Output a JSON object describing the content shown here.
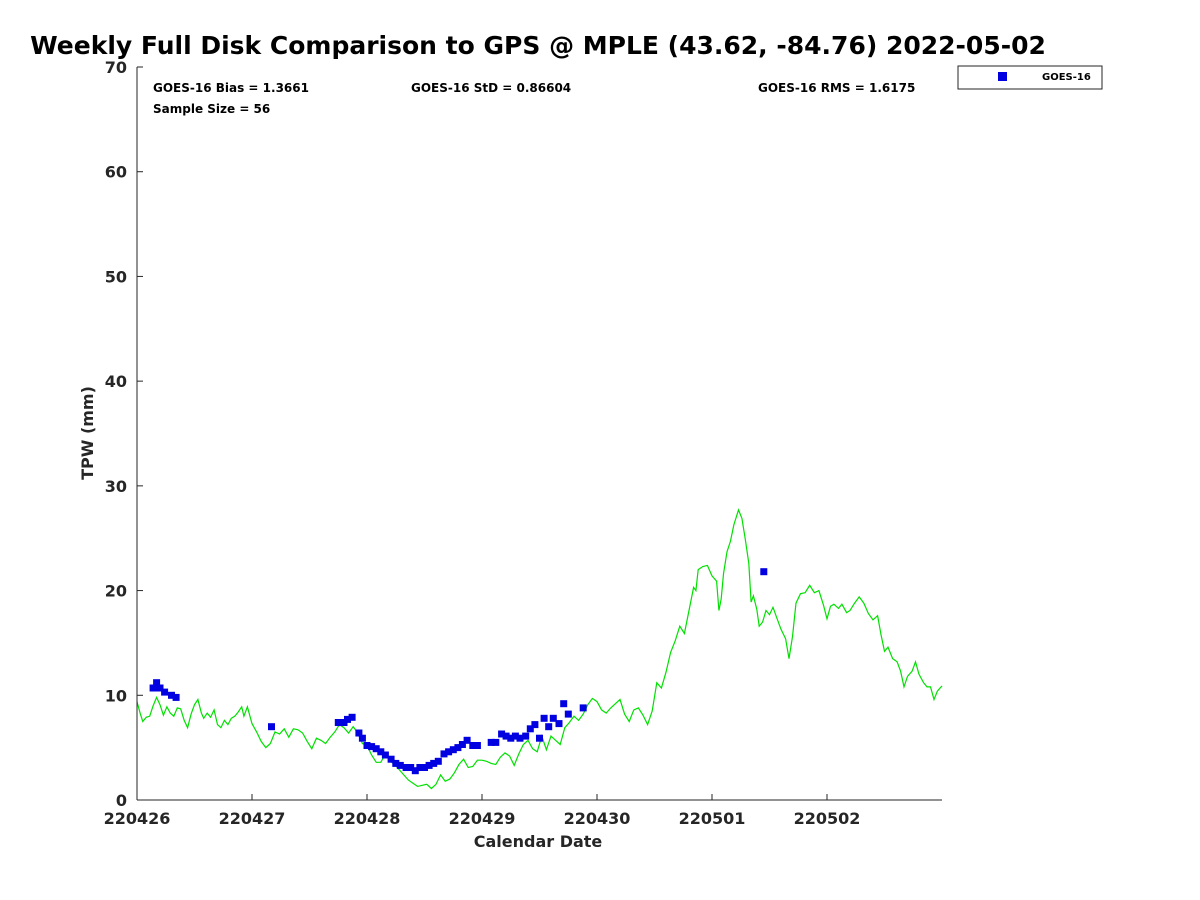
{
  "chart_data": {
    "type": "scatter",
    "title": "Weekly Full Disk Comparison to GPS @ MPLE (43.62, -84.76) 2022-05-02",
    "xlabel": "Calendar Date",
    "ylabel": "TPW (mm)",
    "xlim": [
      0,
      7
    ],
    "ylim": [
      0,
      70
    ],
    "x_ticks": [
      {
        "value": 0,
        "label": "220426"
      },
      {
        "value": 1,
        "label": "220427"
      },
      {
        "value": 2,
        "label": "220428"
      },
      {
        "value": 3,
        "label": "220429"
      },
      {
        "value": 4,
        "label": "220430"
      },
      {
        "value": 5,
        "label": "220501"
      },
      {
        "value": 6,
        "label": "220502"
      }
    ],
    "y_ticks": [
      0,
      10,
      20,
      30,
      40,
      50,
      60,
      70
    ],
    "stats": {
      "bias": "GOES-16 Bias = 1.3661",
      "std": "GOES-16 StD = 0.86604",
      "rms": "GOES-16 RMS = 1.6175",
      "sample": "Sample Size = 56"
    },
    "legend": {
      "position": "top-right, outside plot",
      "entries": [
        {
          "name": "GOES-16",
          "color": "#0000e0",
          "marker": "square"
        }
      ]
    },
    "series": [
      {
        "name": "GOES-16",
        "color": "#0000e0",
        "marker": "square",
        "points": [
          [
            0.14,
            10.7
          ],
          [
            0.17,
            11.2
          ],
          [
            0.2,
            10.7
          ],
          [
            0.24,
            10.3
          ],
          [
            0.3,
            10.0
          ],
          [
            0.34,
            9.8
          ],
          [
            1.17,
            7.0
          ],
          [
            1.75,
            7.4
          ],
          [
            1.8,
            7.4
          ],
          [
            1.83,
            7.7
          ],
          [
            1.87,
            7.9
          ],
          [
            1.93,
            6.4
          ],
          [
            1.96,
            5.9
          ],
          [
            2.0,
            5.2
          ],
          [
            2.04,
            5.1
          ],
          [
            2.08,
            4.9
          ],
          [
            2.12,
            4.6
          ],
          [
            2.16,
            4.3
          ],
          [
            2.21,
            3.9
          ],
          [
            2.25,
            3.5
          ],
          [
            2.29,
            3.3
          ],
          [
            2.34,
            3.1
          ],
          [
            2.38,
            3.1
          ],
          [
            2.42,
            2.8
          ],
          [
            2.46,
            3.1
          ],
          [
            2.5,
            3.1
          ],
          [
            2.54,
            3.3
          ],
          [
            2.58,
            3.5
          ],
          [
            2.62,
            3.7
          ],
          [
            2.67,
            4.4
          ],
          [
            2.71,
            4.6
          ],
          [
            2.75,
            4.8
          ],
          [
            2.79,
            5.0
          ],
          [
            2.83,
            5.3
          ],
          [
            2.87,
            5.7
          ],
          [
            2.92,
            5.2
          ],
          [
            2.96,
            5.2
          ],
          [
            3.08,
            5.5
          ],
          [
            3.12,
            5.5
          ],
          [
            3.17,
            6.3
          ],
          [
            3.21,
            6.1
          ],
          [
            3.25,
            5.9
          ],
          [
            3.29,
            6.1
          ],
          [
            3.33,
            5.9
          ],
          [
            3.38,
            6.1
          ],
          [
            3.42,
            6.8
          ],
          [
            3.46,
            7.2
          ],
          [
            3.5,
            5.9
          ],
          [
            3.54,
            7.8
          ],
          [
            3.58,
            7.0
          ],
          [
            3.62,
            7.8
          ],
          [
            3.67,
            7.3
          ],
          [
            3.71,
            9.2
          ],
          [
            3.75,
            8.2
          ],
          [
            3.88,
            8.8
          ],
          [
            5.45,
            21.8
          ]
        ]
      },
      {
        "name": "GPS",
        "color": "#00e000",
        "marker": "line",
        "points": [
          [
            0.0,
            9.4
          ],
          [
            0.03,
            8.2
          ],
          [
            0.05,
            7.5
          ],
          [
            0.08,
            7.9
          ],
          [
            0.11,
            8.0
          ],
          [
            0.14,
            9.0
          ],
          [
            0.17,
            9.8
          ],
          [
            0.2,
            9.1
          ],
          [
            0.23,
            8.1
          ],
          [
            0.26,
            8.9
          ],
          [
            0.29,
            8.3
          ],
          [
            0.32,
            8.0
          ],
          [
            0.35,
            8.8
          ],
          [
            0.38,
            8.7
          ],
          [
            0.41,
            7.6
          ],
          [
            0.44,
            6.9
          ],
          [
            0.47,
            8.2
          ],
          [
            0.5,
            9.1
          ],
          [
            0.53,
            9.6
          ],
          [
            0.56,
            8.3
          ],
          [
            0.58,
            7.8
          ],
          [
            0.61,
            8.3
          ],
          [
            0.64,
            7.9
          ],
          [
            0.67,
            8.6
          ],
          [
            0.7,
            7.2
          ],
          [
            0.73,
            6.9
          ],
          [
            0.76,
            7.6
          ],
          [
            0.79,
            7.2
          ],
          [
            0.82,
            7.8
          ],
          [
            0.85,
            8.0
          ],
          [
            0.88,
            8.4
          ],
          [
            0.91,
            8.9
          ],
          [
            0.93,
            8.0
          ],
          [
            0.96,
            8.9
          ],
          [
            1.0,
            7.3
          ],
          [
            1.04,
            6.5
          ],
          [
            1.08,
            5.6
          ],
          [
            1.12,
            5.0
          ],
          [
            1.16,
            5.4
          ],
          [
            1.2,
            6.5
          ],
          [
            1.24,
            6.3
          ],
          [
            1.28,
            6.8
          ],
          [
            1.32,
            6.0
          ],
          [
            1.36,
            6.8
          ],
          [
            1.4,
            6.7
          ],
          [
            1.44,
            6.4
          ],
          [
            1.48,
            5.6
          ],
          [
            1.52,
            4.9
          ],
          [
            1.56,
            5.9
          ],
          [
            1.6,
            5.7
          ],
          [
            1.64,
            5.4
          ],
          [
            1.68,
            6.0
          ],
          [
            1.72,
            6.5
          ],
          [
            1.76,
            7.2
          ],
          [
            1.8,
            6.9
          ],
          [
            1.84,
            6.4
          ],
          [
            1.88,
            7.0
          ],
          [
            1.92,
            6.4
          ],
          [
            1.96,
            5.4
          ],
          [
            2.0,
            5.2
          ],
          [
            2.04,
            4.3
          ],
          [
            2.08,
            3.6
          ],
          [
            2.12,
            3.6
          ],
          [
            2.16,
            4.4
          ],
          [
            2.2,
            3.7
          ],
          [
            2.24,
            3.4
          ],
          [
            2.28,
            2.9
          ],
          [
            2.32,
            2.4
          ],
          [
            2.36,
            1.9
          ],
          [
            2.4,
            1.6
          ],
          [
            2.44,
            1.3
          ],
          [
            2.48,
            1.4
          ],
          [
            2.52,
            1.5
          ],
          [
            2.56,
            1.1
          ],
          [
            2.6,
            1.5
          ],
          [
            2.64,
            2.4
          ],
          [
            2.68,
            1.8
          ],
          [
            2.72,
            2.0
          ],
          [
            2.76,
            2.6
          ],
          [
            2.8,
            3.4
          ],
          [
            2.84,
            3.9
          ],
          [
            2.88,
            3.1
          ],
          [
            2.92,
            3.2
          ],
          [
            2.96,
            3.8
          ],
          [
            3.0,
            3.8
          ],
          [
            3.04,
            3.7
          ],
          [
            3.08,
            3.5
          ],
          [
            3.12,
            3.4
          ],
          [
            3.16,
            4.1
          ],
          [
            3.2,
            4.5
          ],
          [
            3.24,
            4.2
          ],
          [
            3.28,
            3.3
          ],
          [
            3.32,
            4.4
          ],
          [
            3.36,
            5.3
          ],
          [
            3.4,
            5.7
          ],
          [
            3.44,
            4.9
          ],
          [
            3.48,
            4.6
          ],
          [
            3.52,
            6.1
          ],
          [
            3.56,
            4.8
          ],
          [
            3.6,
            6.1
          ],
          [
            3.64,
            5.7
          ],
          [
            3.68,
            5.3
          ],
          [
            3.72,
            6.9
          ],
          [
            3.76,
            7.4
          ],
          [
            3.8,
            8.0
          ],
          [
            3.84,
            7.6
          ],
          [
            3.88,
            8.2
          ],
          [
            3.92,
            9.1
          ],
          [
            3.96,
            9.7
          ],
          [
            4.0,
            9.4
          ],
          [
            4.04,
            8.6
          ],
          [
            4.08,
            8.3
          ],
          [
            4.12,
            8.8
          ],
          [
            4.16,
            9.2
          ],
          [
            4.2,
            9.6
          ],
          [
            4.24,
            8.2
          ],
          [
            4.28,
            7.5
          ],
          [
            4.32,
            8.6
          ],
          [
            4.36,
            8.8
          ],
          [
            4.4,
            8.1
          ],
          [
            4.44,
            7.2
          ],
          [
            4.48,
            8.5
          ],
          [
            4.52,
            11.2
          ],
          [
            4.56,
            10.7
          ],
          [
            4.6,
            12.2
          ],
          [
            4.64,
            14.1
          ],
          [
            4.68,
            15.2
          ],
          [
            4.72,
            16.6
          ],
          [
            4.76,
            15.9
          ],
          [
            4.8,
            18.1
          ],
          [
            4.84,
            20.3
          ],
          [
            4.86,
            20.0
          ],
          [
            4.88,
            22.0
          ],
          [
            4.92,
            22.3
          ],
          [
            4.96,
            22.4
          ],
          [
            5.0,
            21.4
          ],
          [
            5.04,
            20.9
          ],
          [
            5.06,
            18.1
          ],
          [
            5.08,
            19.2
          ],
          [
            5.1,
            21.6
          ],
          [
            5.13,
            23.7
          ],
          [
            5.16,
            24.7
          ],
          [
            5.19,
            26.3
          ],
          [
            5.23,
            27.7
          ],
          [
            5.26,
            26.9
          ],
          [
            5.29,
            24.9
          ],
          [
            5.32,
            22.6
          ],
          [
            5.34,
            18.9
          ],
          [
            5.36,
            19.5
          ],
          [
            5.39,
            18.2
          ],
          [
            5.41,
            16.6
          ],
          [
            5.44,
            17.0
          ],
          [
            5.47,
            18.1
          ],
          [
            5.5,
            17.7
          ],
          [
            5.53,
            18.4
          ],
          [
            5.56,
            17.5
          ],
          [
            5.6,
            16.3
          ],
          [
            5.64,
            15.4
          ],
          [
            5.67,
            13.5
          ],
          [
            5.7,
            15.6
          ],
          [
            5.73,
            18.8
          ],
          [
            5.77,
            19.7
          ],
          [
            5.81,
            19.8
          ],
          [
            5.85,
            20.5
          ],
          [
            5.89,
            19.8
          ],
          [
            5.93,
            20.0
          ],
          [
            5.97,
            18.6
          ],
          [
            6.0,
            17.3
          ],
          [
            6.03,
            18.5
          ],
          [
            6.06,
            18.7
          ],
          [
            6.1,
            18.3
          ],
          [
            6.13,
            18.7
          ],
          [
            6.17,
            17.9
          ],
          [
            6.2,
            18.1
          ],
          [
            6.24,
            18.8
          ],
          [
            6.28,
            19.4
          ],
          [
            6.32,
            18.8
          ],
          [
            6.36,
            17.8
          ],
          [
            6.4,
            17.2
          ],
          [
            6.44,
            17.6
          ],
          [
            6.47,
            15.8
          ],
          [
            6.5,
            14.2
          ],
          [
            6.53,
            14.6
          ],
          [
            6.57,
            13.5
          ],
          [
            6.61,
            13.2
          ],
          [
            6.64,
            12.3
          ],
          [
            6.67,
            10.8
          ],
          [
            6.7,
            11.8
          ],
          [
            6.74,
            12.3
          ],
          [
            6.77,
            13.2
          ],
          [
            6.8,
            12.0
          ],
          [
            6.84,
            11.2
          ],
          [
            6.87,
            10.8
          ],
          [
            6.9,
            10.8
          ],
          [
            6.93,
            9.6
          ],
          [
            6.96,
            10.4
          ],
          [
            7.0,
            10.9
          ]
        ]
      }
    ]
  }
}
